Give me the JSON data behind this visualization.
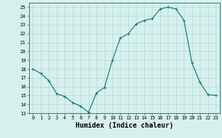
{
  "x": [
    0,
    1,
    2,
    3,
    4,
    5,
    6,
    7,
    8,
    9,
    10,
    11,
    12,
    13,
    14,
    15,
    16,
    17,
    18,
    19,
    20,
    21,
    22,
    23
  ],
  "y": [
    18,
    17.5,
    16.7,
    15.2,
    14.9,
    14.2,
    13.8,
    13.1,
    15.3,
    15.9,
    19.0,
    21.5,
    22.0,
    23.1,
    23.5,
    23.7,
    24.8,
    25.0,
    24.8,
    23.5,
    18.7,
    16.5,
    15.1,
    15.0
  ],
  "line_color": "#1a7a6e",
  "marker": "+",
  "markersize": 3.5,
  "linewidth": 0.9,
  "bg_color": "#d6f0ee",
  "grid_color": "#b0d8d5",
  "xlabel": "Humidex (Indice chaleur)",
  "xlim": [
    -0.5,
    23.5
  ],
  "ylim": [
    13,
    25.5
  ],
  "yticks": [
    13,
    14,
    15,
    16,
    17,
    18,
    19,
    20,
    21,
    22,
    23,
    24,
    25
  ],
  "xticks": [
    0,
    1,
    2,
    3,
    4,
    5,
    6,
    7,
    8,
    9,
    10,
    11,
    12,
    13,
    14,
    15,
    16,
    17,
    18,
    19,
    20,
    21,
    22,
    23
  ],
  "tick_fontsize": 5.0,
  "xlabel_fontsize": 7.0
}
